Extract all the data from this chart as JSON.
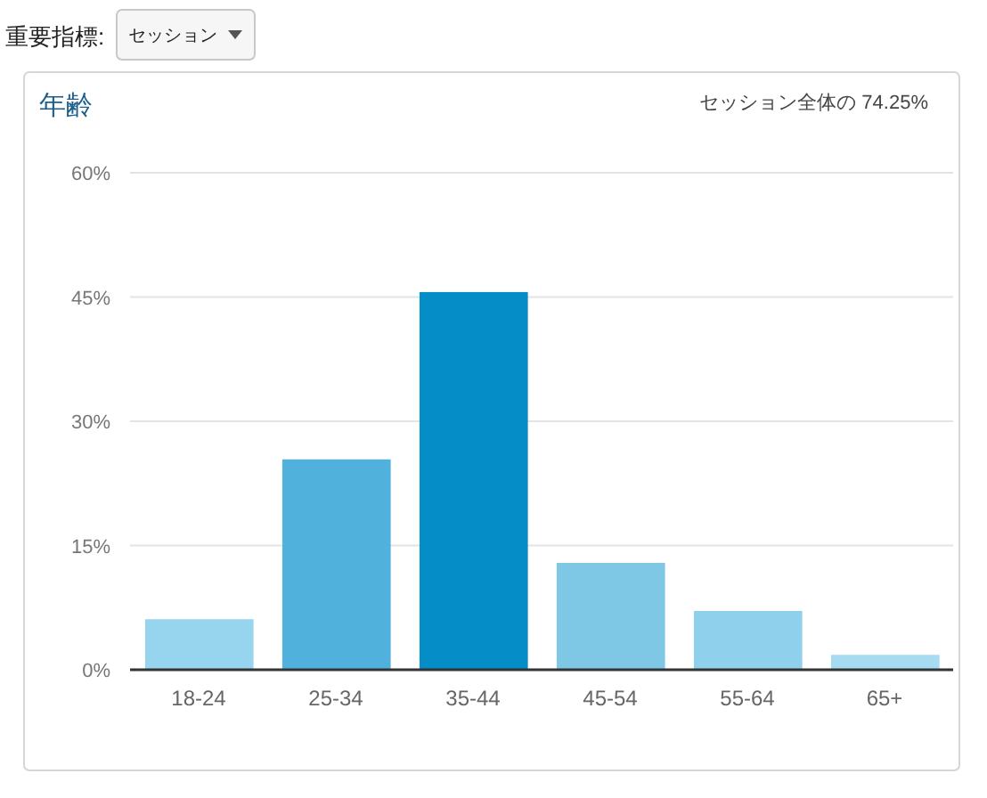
{
  "chart_data": {
    "type": "bar",
    "title": "年齢",
    "subtitle": "セッション全体の 74.25%",
    "annotations": [
      "重要指標:",
      "セッション"
    ],
    "categories": [
      "18-24",
      "25-34",
      "35-44",
      "45-54",
      "55-64",
      "65+"
    ],
    "values": [
      6.1,
      25.4,
      45.6,
      12.9,
      7.1,
      1.8
    ],
    "colors": [
      "#97d4ed",
      "#50b2dc",
      "#058dc7",
      "#7ec8e6",
      "#8fd0ec",
      "#a6dbf2"
    ],
    "ylim": [
      0,
      60
    ],
    "yticks": [
      {
        "value": 0,
        "label": "0%"
      },
      {
        "value": 15,
        "label": "15%"
      },
      {
        "value": 30,
        "label": "30%"
      },
      {
        "value": 45,
        "label": "45%"
      },
      {
        "value": 60,
        "label": "60%"
      }
    ],
    "grid": "y"
  }
}
